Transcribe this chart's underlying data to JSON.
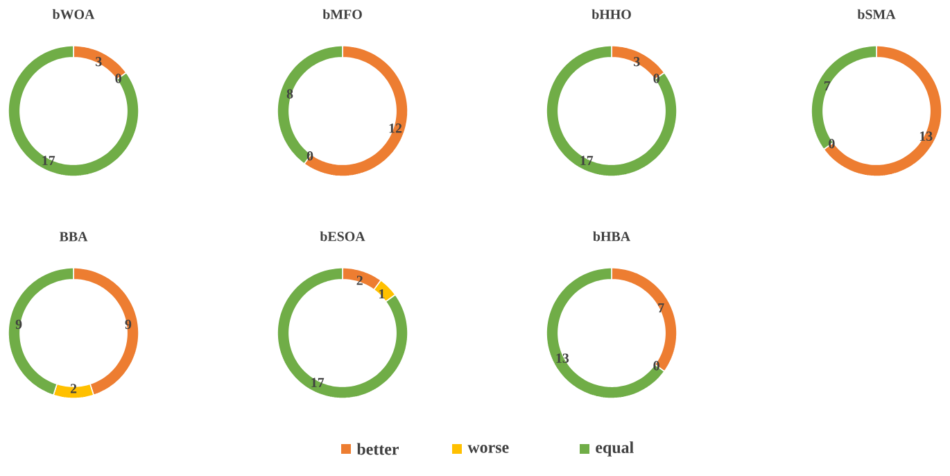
{
  "chart_data": [
    {
      "type": "donut",
      "title": "bWOA",
      "categories": [
        "better",
        "worse",
        "equal"
      ],
      "values": [
        3,
        0,
        17
      ],
      "colors": [
        "#ed7d31",
        "#ffc000",
        "#70ad47"
      ],
      "value_labels": [
        "3",
        "0",
        "17"
      ],
      "legend": "bottom"
    },
    {
      "type": "donut",
      "title": "bMFO",
      "categories": [
        null,
        null,
        null
      ],
      "values": [
        12,
        0,
        8
      ],
      "colors": [
        "#ed7d31",
        "#ffc000",
        "#70ad47"
      ],
      "value_labels": [
        "12",
        "0",
        "8"
      ]
    },
    {
      "type": "donut",
      "title": "bHHO",
      "categories": [
        null,
        null,
        null
      ],
      "values": [
        3,
        0,
        17
      ],
      "colors": [
        "#ed7d31",
        "#ffc000",
        "#70ad47"
      ],
      "value_labels": [
        "3",
        "0",
        "17"
      ]
    },
    {
      "type": "donut",
      "title": "bSMA",
      "categories": [
        null,
        null,
        null
      ],
      "values": [
        13,
        0,
        7
      ],
      "colors": [
        "#ed7d31",
        "#ffc000",
        "#70ad47"
      ],
      "value_labels": [
        "13",
        "0",
        "7"
      ]
    },
    {
      "type": "donut",
      "title": "BBA",
      "categories": [
        null,
        null,
        null
      ],
      "values": [
        9,
        2,
        9
      ],
      "colors": [
        "#ed7d31",
        "#ffc000",
        "#70ad47"
      ],
      "value_labels": [
        "9",
        "2",
        "9"
      ]
    },
    {
      "type": "donut",
      "title": "bESOA",
      "categories": [
        null,
        null,
        null
      ],
      "values": [
        2,
        1,
        17
      ],
      "colors": [
        "#ed7d31",
        "#ffc000",
        "#70ad47"
      ],
      "value_labels": [
        "2",
        "1",
        "17"
      ]
    },
    {
      "type": "donut",
      "title": "bHBA",
      "categories": [
        null,
        null,
        null
      ],
      "values": [
        7,
        0,
        13
      ],
      "colors": [
        "#ed7d31",
        "#ffc000",
        "#70ad47"
      ],
      "value_labels": [
        "7",
        "0",
        "13"
      ]
    }
  ]
}
